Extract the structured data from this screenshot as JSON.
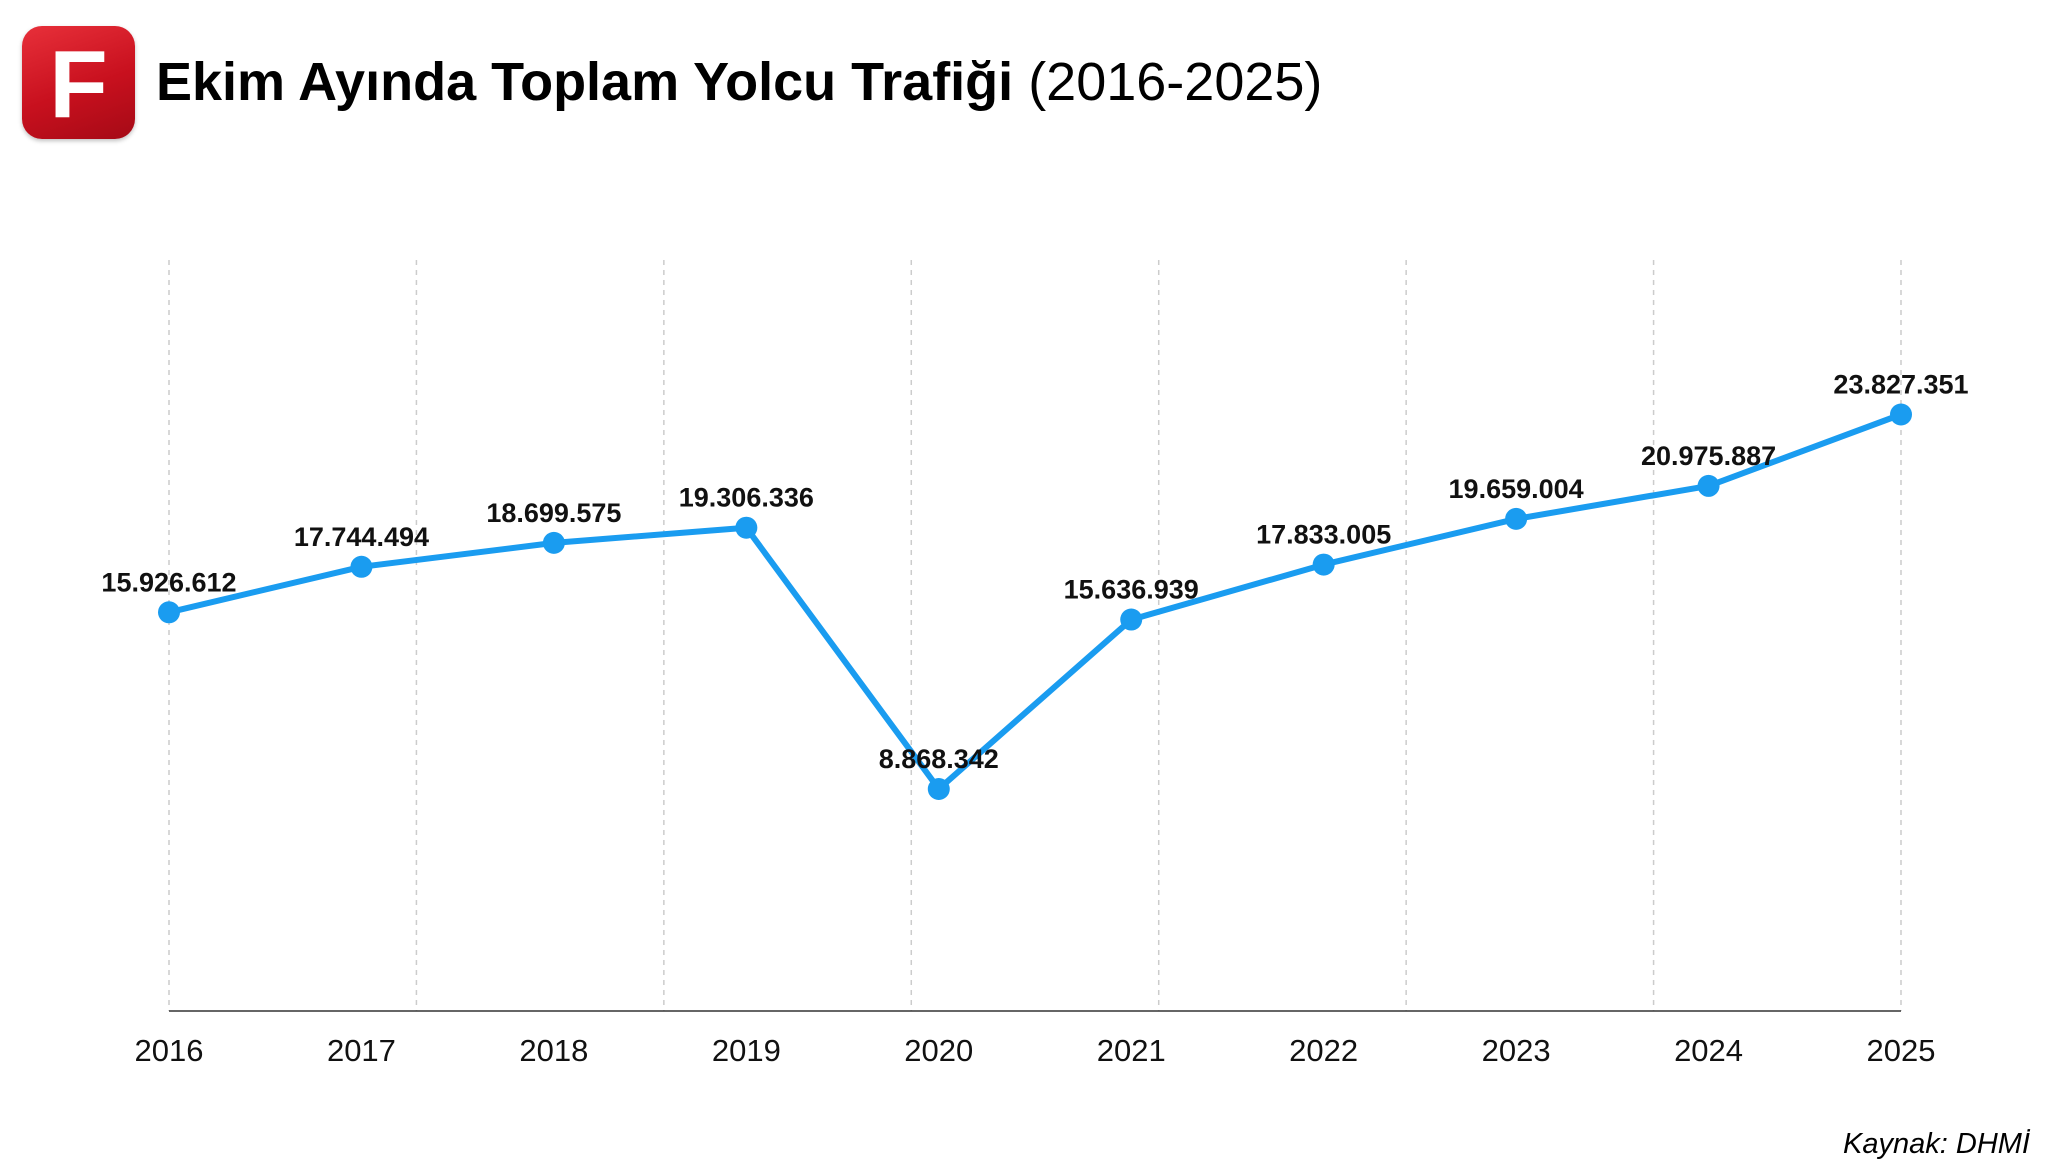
{
  "logo": {
    "letter": "F",
    "color": "#d3141f"
  },
  "header": {
    "title_main": "Ekim Ayında Toplam Yolcu Trafiği",
    "title_sub": "(2016-2025)"
  },
  "source": "Kaynak: DHMİ",
  "chart_data": {
    "type": "line",
    "categories": [
      "2016",
      "2017",
      "2018",
      "2019",
      "2020",
      "2021",
      "2022",
      "2023",
      "2024",
      "2025"
    ],
    "series": [
      {
        "values": [
          15926612,
          17744494,
          18699575,
          19306336,
          8868342,
          15636939,
          17833005,
          19659004,
          20975887,
          23827351
        ],
        "labels": [
          "15.926.612",
          "17.744.494",
          "18.699.575",
          "19.306.336",
          "8.868.342",
          "15.636.939",
          "17.833.005",
          "19.659.004",
          "20.975.887",
          "23.827.351"
        ],
        "color": "#1a9cf0"
      }
    ],
    "ylim": [
      0,
      30000000
    ],
    "grid": "vertical-dashed",
    "title": "",
    "xlabel": "",
    "ylabel": ""
  }
}
